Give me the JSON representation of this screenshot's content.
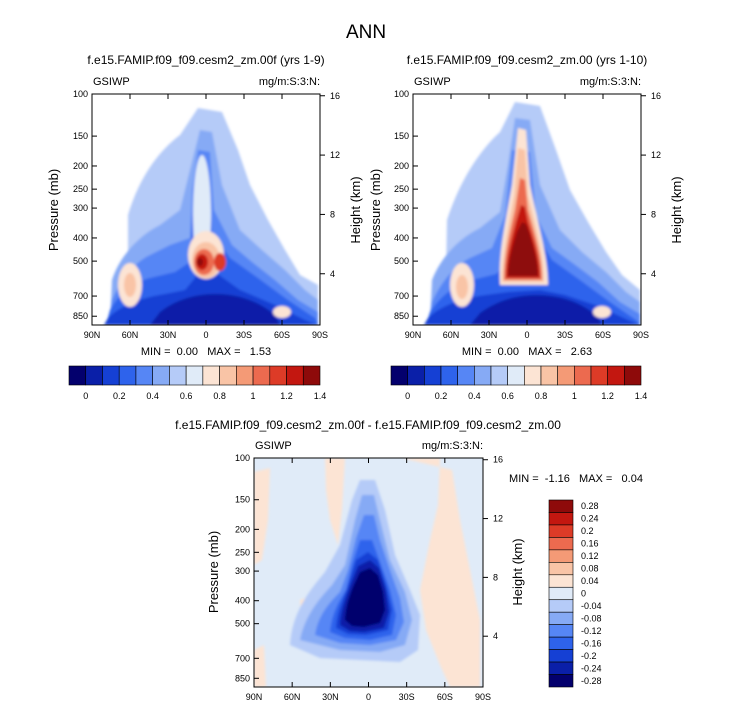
{
  "chart_data": {
    "type": "heatmap",
    "title": "ANN",
    "panels": [
      {
        "id": "p1",
        "title": "f.e15.FAMIP.f09_f09.cesm2_zm.00f (yrs 1-9)",
        "variable": "GSIWP",
        "units": "mg/m:S:3:N:",
        "stats_text": "MIN =  0.00   MAX =   1.53",
        "min": 0.0,
        "max": 1.53,
        "xlabel": "",
        "ylabel": "Pressure (mb)",
        "y2label": "Height (km)",
        "x_ticks": [
          "90N",
          "60N",
          "30N",
          "0",
          "30S",
          "60S",
          "90S"
        ],
        "y_ticks": [
          "100",
          "150",
          "200",
          "250",
          "300",
          "400",
          "500",
          "700",
          "850"
        ],
        "y2_ticks": [
          "16",
          "12",
          "8",
          "4"
        ],
        "features": [
          {
            "lat": 0,
            "p": 510,
            "value": 1.5
          },
          {
            "lat": -10,
            "p": 510,
            "value": 1.2
          },
          {
            "lat": 48,
            "p": 600,
            "value": 0.6
          },
          {
            "lat": -60,
            "p": 830,
            "value": 0.6
          }
        ]
      },
      {
        "id": "p2",
        "title": "f.e15.FAMIP.f09_f09.cesm2_zm.00 (yrs 1-10)",
        "variable": "GSIWP",
        "units": "mg/m:S:3:N:",
        "stats_text": "MIN =  0.00   MAX =   2.63",
        "min": 0.0,
        "max": 2.63,
        "xlabel": "",
        "ylabel": "Pressure (mb)",
        "y2label": "Height (km)",
        "x_ticks": [
          "90N",
          "60N",
          "30N",
          "0",
          "30S",
          "60S",
          "90S"
        ],
        "y_ticks": [
          "100",
          "150",
          "200",
          "250",
          "300",
          "400",
          "500",
          "700",
          "850"
        ],
        "y2_ticks": [
          "16",
          "12",
          "8",
          "4"
        ],
        "features": [
          {
            "lat": 2,
            "p": 480,
            "value": 2.6
          },
          {
            "lat": 48,
            "p": 620,
            "value": 0.6
          },
          {
            "lat": -60,
            "p": 830,
            "value": 0.6
          }
        ]
      },
      {
        "id": "p3",
        "title": "f.e15.FAMIP.f09_f09.cesm2_zm.00f - f.e15.FAMIP.f09_f09.cesm2_zm.00",
        "variable": "GSIWP",
        "units": "mg/m:S:3:N:",
        "stats_text": "MIN =  -1.16   MAX =   0.04",
        "min": -1.16,
        "max": 0.04,
        "xlabel": "",
        "ylabel": "Pressure (mb)",
        "y2label": "Height (km)",
        "x_ticks": [
          "90N",
          "60N",
          "30N",
          "0",
          "30S",
          "60S",
          "90S"
        ],
        "y_ticks": [
          "100",
          "150",
          "200",
          "250",
          "300",
          "400",
          "500",
          "700",
          "850"
        ],
        "y2_ticks": [
          "16",
          "12",
          "8",
          "4"
        ],
        "features": [
          {
            "lat": 0,
            "p": 450,
            "value": -1.16
          }
        ]
      }
    ],
    "colorbar_top": {
      "orientation": "horizontal",
      "labels": [
        "0",
        "0.2",
        "0.4",
        "0.6",
        "0.8",
        "1",
        "1.2",
        "1.4"
      ],
      "colors": [
        "#03006d",
        "#0a1fa8",
        "#1540d4",
        "#2e63ec",
        "#5686f5",
        "#86aaf5",
        "#b5cbf8",
        "#e0ebf8",
        "#fce4d4",
        "#f9c4a6",
        "#f49a76",
        "#ec6a4f",
        "#dd3b27",
        "#c31710",
        "#8e0a0a"
      ]
    },
    "colorbar_bottom": {
      "orientation": "vertical",
      "labels": [
        "0.28",
        "0.24",
        "0.2",
        "0.16",
        "0.12",
        "0.08",
        "0.04",
        "0",
        "-0.04",
        "-0.08",
        "-0.12",
        "-0.16",
        "-0.2",
        "-0.24",
        "-0.28"
      ],
      "colors": [
        "#8e0a0a",
        "#c31710",
        "#dd3b27",
        "#ec6a4f",
        "#f49a76",
        "#f9c4a6",
        "#fce4d4",
        "#e0ebf8",
        "#b5cbf8",
        "#86aaf5",
        "#5686f5",
        "#2e63ec",
        "#1540d4",
        "#0a1fa8",
        "#03006d"
      ]
    }
  }
}
